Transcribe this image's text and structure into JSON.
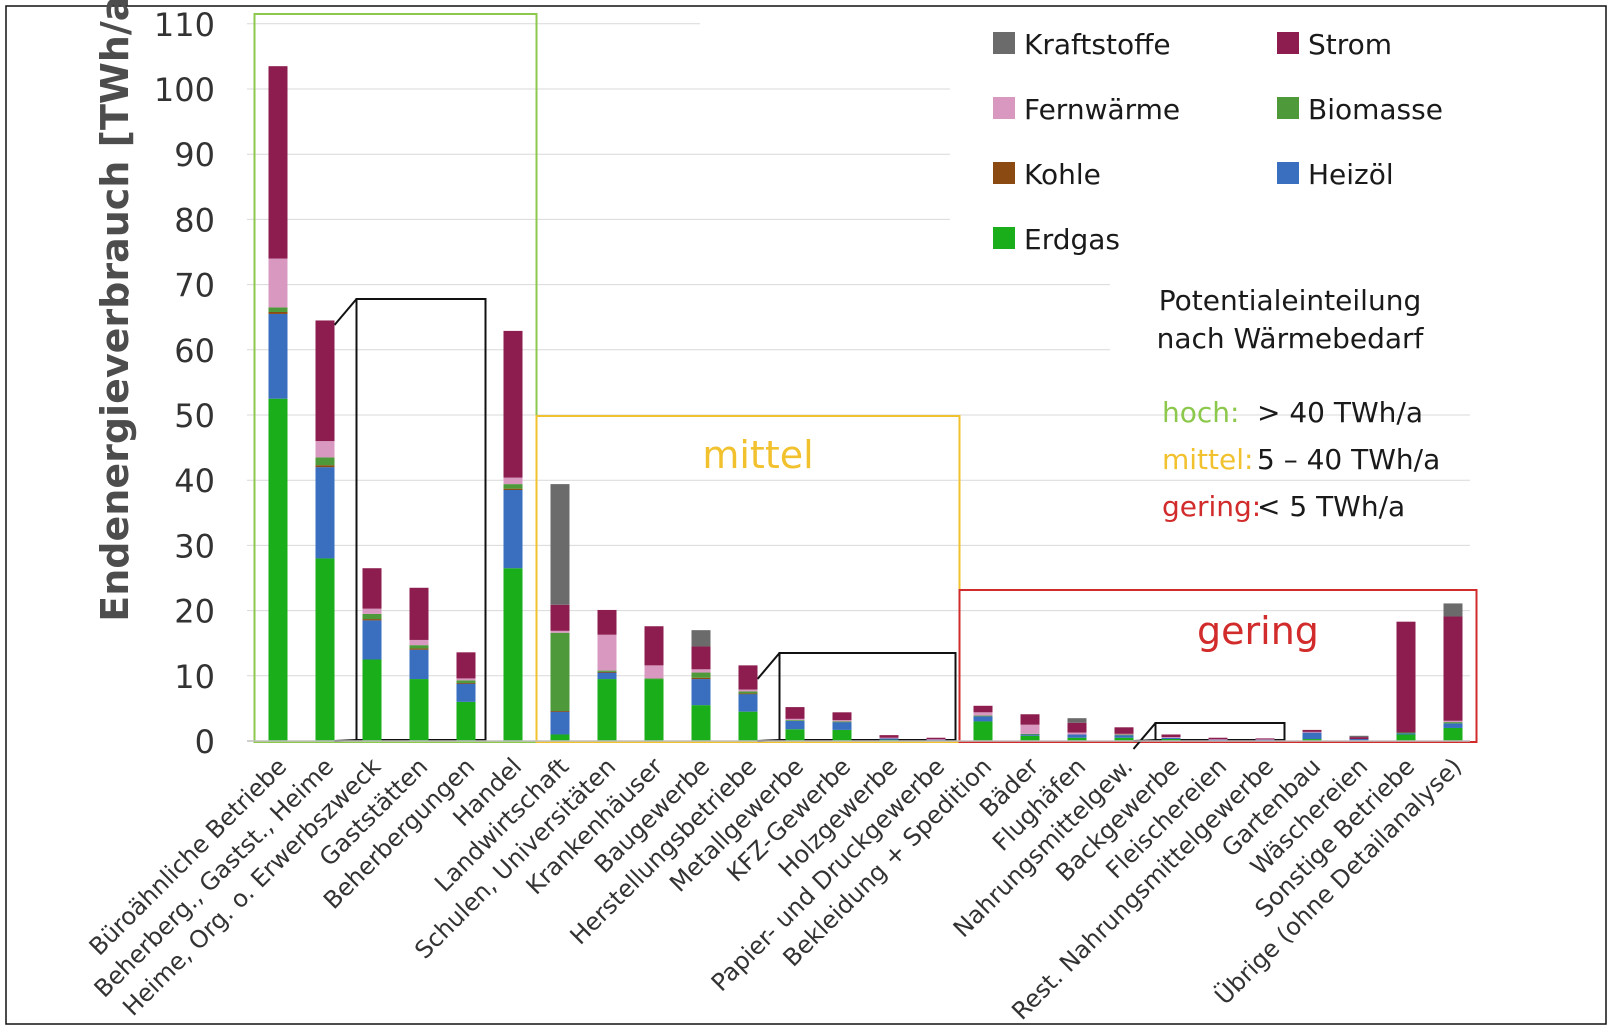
{
  "chart_data": {
    "type": "bar",
    "stacked": true,
    "ylabel": "Endenergieverbrauch [TWh/a]",
    "ylim": [
      0,
      110
    ],
    "yticks": [
      0,
      10,
      20,
      30,
      40,
      50,
      60,
      70,
      80,
      90,
      100,
      110
    ],
    "grid": true,
    "legend_position": "top-right",
    "categories": [
      "Büroähnliche Betriebe",
      "Beherberg., Gastst., Heime",
      "Heime, Org. o. Erwerbszweck",
      "Gaststätten",
      "Beherbergungen",
      "Handel",
      "Landwirtschaft",
      "Schulen, Universitäten",
      "Krankenhäuser",
      "Baugewerbe",
      "Herstellungsbetriebe",
      "Metallgewerbe",
      "KFZ-Gewerbe",
      "Holzgewerbe",
      "Papier- und Druckgewerbe",
      "Bekleidung + Spedition",
      "Bäder",
      "Flughäfen",
      "Nahrungsmittelgew.",
      "Backgewerbe",
      "Fleischereien",
      "Rest. Nahrungsmittelgewerbe",
      "Gartenbau",
      "Wäschereien",
      "Sonstige Betriebe",
      "Übrige (ohne Detailanalyse)"
    ],
    "series": [
      {
        "name": "Erdgas",
        "color": "#1aae1a",
        "values": [
          52.5,
          28,
          12.5,
          9.5,
          6,
          26.5,
          1,
          9.5,
          9.5,
          5.5,
          4.5,
          1.8,
          1.7,
          0.2,
          0.1,
          3,
          0.8,
          0.5,
          0.5,
          0.3,
          0.1,
          0.1,
          0.3,
          0.1,
          1,
          2
        ]
      },
      {
        "name": "Heizöl",
        "color": "#3a6fbf",
        "values": [
          13,
          14,
          6,
          4.5,
          2.8,
          12,
          3.5,
          1,
          0,
          4,
          2.7,
          1.3,
          1.2,
          0.2,
          0.1,
          0.8,
          0.2,
          0.5,
          0.4,
          0.2,
          0.1,
          0.1,
          1,
          0.2,
          0.2,
          0.7
        ]
      },
      {
        "name": "Kohle",
        "color": "#8b4a12",
        "values": [
          0.3,
          0.3,
          0.2,
          0.2,
          0.1,
          0.2,
          0.1,
          0.1,
          0,
          0.2,
          0.1,
          0,
          0,
          0,
          0,
          0,
          0,
          0,
          0,
          0,
          0,
          0,
          0,
          0,
          0,
          0
        ]
      },
      {
        "name": "Biomasse",
        "color": "#4e9a3a",
        "values": [
          0.7,
          1.2,
          0.8,
          0.5,
          0.4,
          0.7,
          12,
          0.2,
          0.1,
          0.8,
          0.3,
          0.1,
          0.1,
          0,
          0,
          0.1,
          0.1,
          0,
          0.1,
          0,
          0,
          0,
          0,
          0,
          0.1,
          0.2
        ]
      },
      {
        "name": "Fernwärme",
        "color": "#d898c0",
        "values": [
          7.5,
          2.5,
          0.8,
          0.8,
          0.3,
          1,
          0.3,
          5.5,
          2,
          0.5,
          0.3,
          0.2,
          0.2,
          0.1,
          0.1,
          0.5,
          1.4,
          0.3,
          0.1,
          0.1,
          0.1,
          0.1,
          0.1,
          0,
          0,
          0.2
        ]
      },
      {
        "name": "Strom",
        "color": "#8c1d4e",
        "values": [
          29.5,
          18.5,
          6.2,
          8,
          4,
          22.5,
          4,
          3.8,
          6,
          3.5,
          3.7,
          1.8,
          1.2,
          0.4,
          0.2,
          1,
          1.6,
          1.5,
          1,
          0.4,
          0.2,
          0.1,
          0.3,
          0.3,
          17,
          16
        ]
      },
      {
        "name": "Kraftstoffe",
        "color": "#6b6b6b",
        "values": [
          0,
          0,
          0,
          0,
          0,
          0,
          18.5,
          0,
          0,
          2.5,
          0,
          0,
          0,
          0,
          0,
          0,
          0,
          0.7,
          0,
          0,
          0,
          0,
          0,
          0.2,
          0,
          2
        ]
      }
    ],
    "legend": [
      "Kraftstoffe",
      "Strom",
      "Fernwärme",
      "Biomasse",
      "Kohle",
      "Heizöl",
      "Erdgas"
    ],
    "annotations": {
      "heading": [
        "Potentialeinteilung",
        "nach Wärmebedarf"
      ],
      "levels": [
        {
          "label": "hoch:",
          "value": "> 40 TWh/a",
          "color": "#8cc84b"
        },
        {
          "label": "mittel:",
          "value": "5 – 40 TWh/a",
          "color": "#f2c12e"
        },
        {
          "label": "gering:",
          "value": "< 5 TWh/a",
          "color": "#d22b2b"
        }
      ],
      "group_labels": [
        {
          "text": "mittel",
          "color": "#f2c12e"
        },
        {
          "text": "gering",
          "color": "#d22b2b"
        }
      ]
    }
  }
}
